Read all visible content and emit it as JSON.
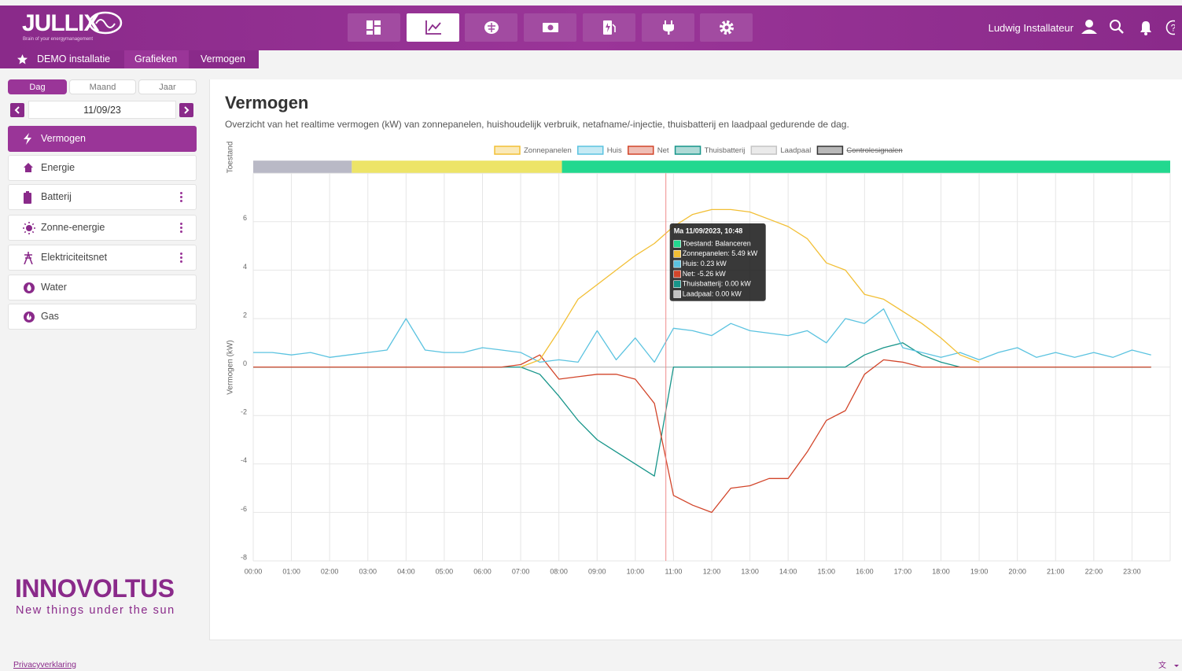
{
  "header": {
    "logo": "JULLIX",
    "tagline": "Brain of your energymanagement",
    "user": "Ludwig Installateur"
  },
  "breadcrumb": [
    "DEMO installatie",
    "Grafieken",
    "Vermogen"
  ],
  "sidebar": {
    "tabs": [
      "Dag",
      "Maand",
      "Jaar"
    ],
    "date": "11/09/23",
    "menu": [
      "Vermogen",
      "Energie",
      "Batterij",
      "Zonne-energie",
      "Elektriciteitsnet",
      "Water",
      "Gas"
    ],
    "brand": "INNOVOLTUS",
    "slogan": "New things under the sun"
  },
  "page": {
    "title": "Vermogen",
    "description": "Overzicht van het realtime vermogen (kW) van zonnepanelen, huishoudelijk verbruik, netafname/-injectie, thuisbatterij en laadpaal gedurende de dag."
  },
  "footer": {
    "privacy": "Privacyverklaring"
  },
  "chart_data": {
    "type": "line",
    "y_label": "Vermogen (kW)",
    "status_label": "Toestand",
    "status": [
      {
        "start": 0,
        "end": 2.58,
        "color": "#b9b9c6"
      },
      {
        "start": 2.58,
        "end": 8.08,
        "color": "#ede467"
      },
      {
        "start": 8.08,
        "end": 24,
        "color": "#22d88f"
      }
    ],
    "x": [
      0,
      0.5,
      1,
      1.5,
      2,
      2.5,
      3,
      3.5,
      4,
      4.5,
      5,
      5.5,
      6,
      6.5,
      7,
      7.5,
      8,
      8.5,
      9,
      9.5,
      10,
      10.5,
      11,
      11.5,
      12,
      12.5,
      13,
      13.5,
      14,
      14.5,
      15,
      15.5,
      16,
      16.5,
      17,
      17.5,
      18,
      18.5,
      19,
      19.5,
      20,
      20.5,
      21,
      21.5,
      22,
      22.5,
      23,
      23.5
    ],
    "xlim": [
      0,
      24
    ],
    "xticks": [
      {
        "value": 0,
        "label": "00:00"
      },
      {
        "value": 1,
        "label": "01:00"
      },
      {
        "value": 2,
        "label": "02:00"
      },
      {
        "value": 3,
        "label": "03:00"
      },
      {
        "value": 4,
        "label": "04:00"
      },
      {
        "value": 5,
        "label": "05:00"
      },
      {
        "value": 6,
        "label": "06:00"
      },
      {
        "value": 7,
        "label": "07:00"
      },
      {
        "value": 8,
        "label": "08:00"
      },
      {
        "value": 9,
        "label": "09:00"
      },
      {
        "value": 10,
        "label": "10:00"
      },
      {
        "value": 11,
        "label": "11:00"
      },
      {
        "value": 12,
        "label": "12:00"
      },
      {
        "value": 13,
        "label": "13:00"
      },
      {
        "value": 14,
        "label": "14:00"
      },
      {
        "value": 15,
        "label": "15:00"
      },
      {
        "value": 16,
        "label": "16:00"
      },
      {
        "value": 17,
        "label": "17:00"
      },
      {
        "value": 18,
        "label": "18:00"
      },
      {
        "value": 19,
        "label": "19:00"
      },
      {
        "value": 20,
        "label": "20:00"
      },
      {
        "value": 21,
        "label": "21:00"
      },
      {
        "value": 22,
        "label": "22:00"
      },
      {
        "value": 23,
        "label": "23:00"
      }
    ],
    "ylim": [
      -8,
      8
    ],
    "yticks": [
      -8,
      -6,
      -4,
      -2,
      0,
      2,
      4,
      6
    ],
    "grid": true,
    "series": [
      {
        "name": "Zonnepanelen",
        "color": "#f2bf35",
        "values": [
          null,
          null,
          null,
          null,
          null,
          null,
          null,
          null,
          null,
          null,
          null,
          null,
          null,
          null,
          0,
          0.3,
          1.5,
          2.8,
          3.4,
          4.0,
          4.6,
          5.1,
          5.8,
          6.3,
          6.5,
          6.5,
          6.4,
          6.1,
          5.8,
          5.3,
          4.3,
          4.0,
          3.0,
          2.8,
          2.3,
          1.8,
          1.2,
          0.5,
          0.2,
          null,
          null,
          null,
          null,
          null,
          null,
          null,
          null,
          null
        ]
      },
      {
        "name": "Huis",
        "color": "#5bc3e0",
        "values": [
          0.6,
          0.6,
          0.5,
          0.6,
          0.4,
          0.5,
          0.6,
          0.7,
          2.0,
          0.7,
          0.6,
          0.6,
          0.8,
          0.7,
          0.6,
          0.2,
          0.3,
          0.2,
          1.5,
          0.3,
          1.2,
          0.2,
          1.6,
          1.5,
          1.3,
          1.8,
          1.5,
          1.4,
          1.3,
          1.5,
          1.0,
          2.0,
          1.8,
          2.4,
          0.8,
          0.6,
          0.4,
          0.6,
          0.3,
          0.6,
          0.8,
          0.4,
          0.6,
          0.4,
          0.6,
          0.4,
          0.7,
          0.5
        ]
      },
      {
        "name": "Net",
        "color": "#d2452a",
        "values": [
          0,
          0,
          0,
          0,
          0,
          0,
          0,
          0,
          0,
          0,
          0,
          0,
          0,
          0,
          0.1,
          0.5,
          -0.5,
          -0.4,
          -0.3,
          -0.3,
          -0.5,
          -1.5,
          -5.3,
          -5.7,
          -6.0,
          -5.0,
          -4.9,
          -4.6,
          -4.6,
          -3.5,
          -2.2,
          -1.8,
          -0.3,
          0.3,
          0.2,
          0,
          0,
          0,
          0,
          0,
          0,
          0,
          0,
          0,
          0,
          0,
          0,
          0
        ]
      },
      {
        "name": "Thuisbatterij",
        "color": "#17958a",
        "values": [
          0,
          0,
          0,
          0,
          0,
          0,
          0,
          0,
          0,
          0,
          0,
          0,
          0,
          0,
          0,
          -0.3,
          -1.2,
          -2.2,
          -3.0,
          -3.5,
          -4.0,
          -4.5,
          0,
          0,
          0,
          0,
          0,
          0,
          0,
          0,
          0,
          0,
          0.5,
          0.8,
          1.0,
          0.5,
          0.2,
          0,
          0,
          0,
          0,
          0,
          0,
          0,
          0,
          0,
          0,
          0
        ]
      },
      {
        "name": "Laadpaal",
        "color": "#c4c4c4",
        "values": [
          0,
          0,
          0,
          0,
          0,
          0,
          0,
          0,
          0,
          0,
          0,
          0,
          0,
          0,
          0,
          0,
          0,
          0,
          0,
          0,
          0,
          0,
          0,
          0,
          0,
          0,
          0,
          0,
          0,
          0,
          0,
          0,
          0,
          0,
          0,
          0,
          0,
          0,
          0,
          0,
          0,
          0,
          0,
          0,
          0,
          0,
          0,
          0
        ]
      },
      {
        "name": "Controlesignalen",
        "color": "#333333",
        "hidden": true
      }
    ],
    "cursor_color": "#f08a8a",
    "tooltip": {
      "x": 10.8,
      "title": "Ma 11/09/2023, 10:48",
      "items": [
        {
          "label": "Toestand: Balanceren",
          "color": "#22d88f"
        },
        {
          "label": "Zonnepanelen: 5.49 kW",
          "color": "#f2bf35"
        },
        {
          "label": "Huis: 0.23 kW",
          "color": "#5bc3e0"
        },
        {
          "label": "Net: -5.26 kW",
          "color": "#d2452a"
        },
        {
          "label": "Thuisbatterij: 0.00 kW",
          "color": "#17958a"
        },
        {
          "label": "Laadpaal: 0.00 kW",
          "color": "#c4c4c4"
        }
      ]
    }
  }
}
